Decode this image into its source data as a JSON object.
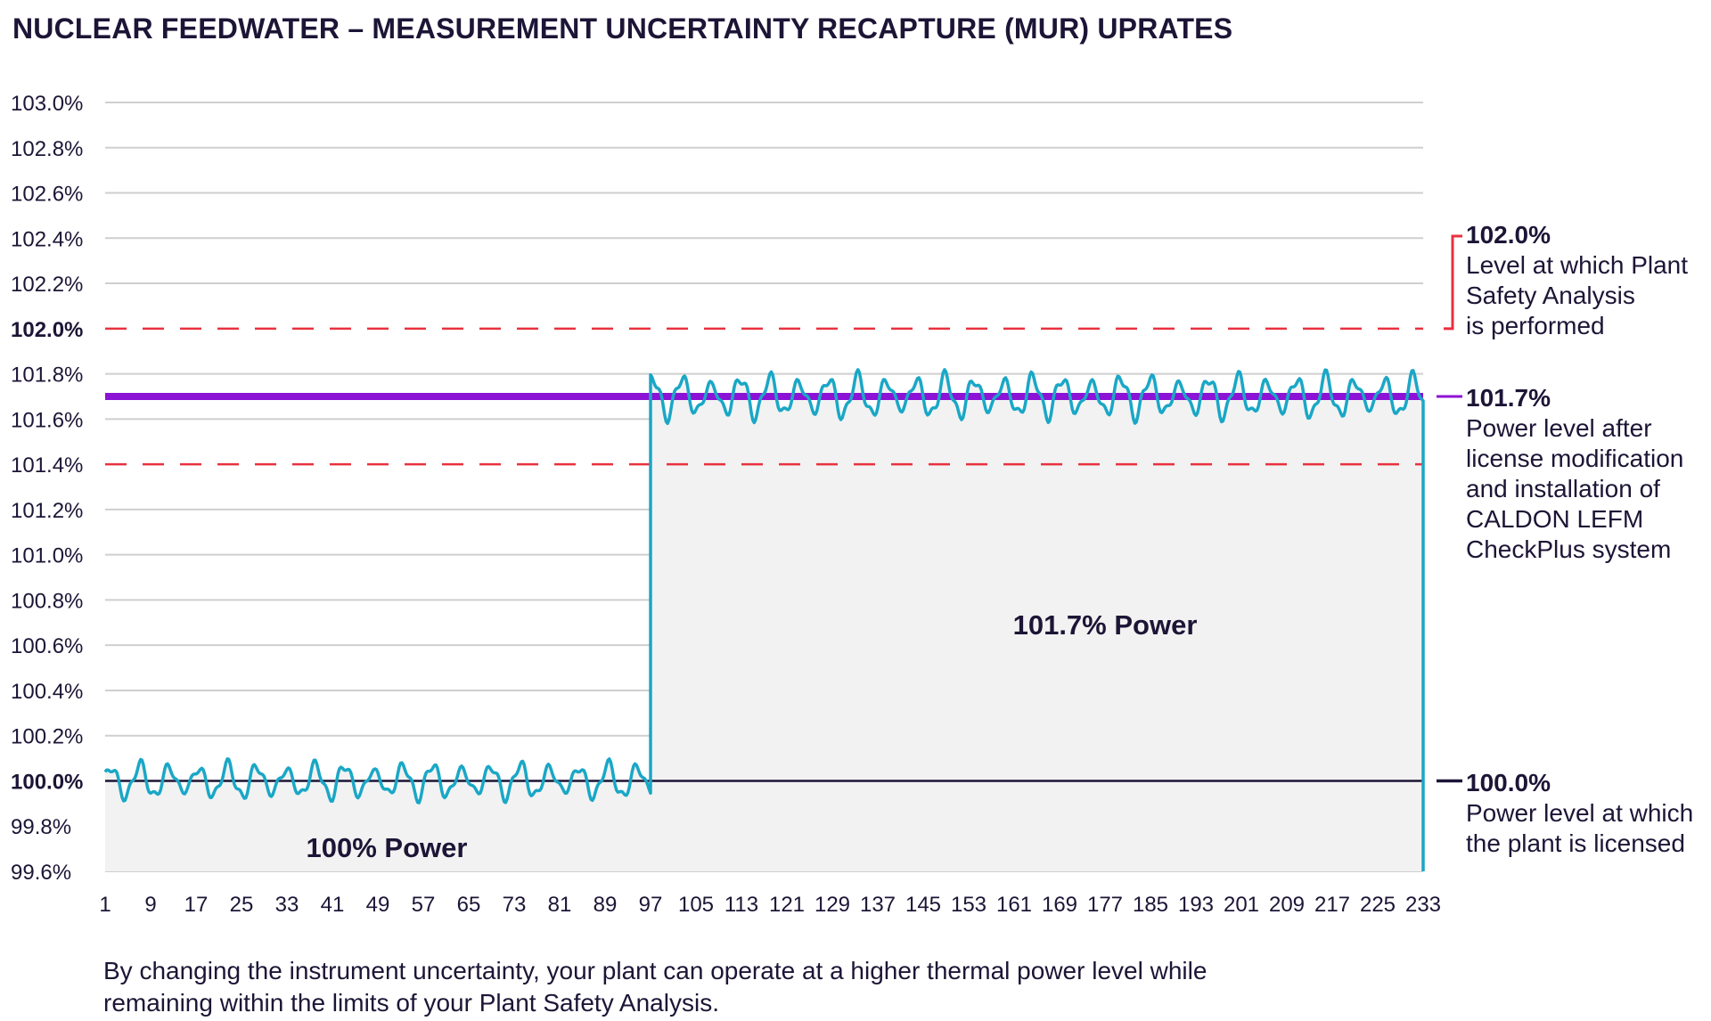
{
  "title": "NUCLEAR FEEDWATER – MEASUREMENT UNCERTAINTY RECAPTURE (MUR) UPRATES",
  "caption": "By changing the instrument uncertainty, your plant can operate at a higher thermal power level while\nremaining within the limits of your Plant Safety Analysis.",
  "colors": {
    "series": "#1aa7c6",
    "uprate_line": "#8c12d6",
    "safety_dashed": "#e8313f",
    "baseline": "#1d1536",
    "fill": "#f2f2f2",
    "grid": "#cfcfcf"
  },
  "annotations": [
    {
      "id": "safety",
      "value": "102.0%",
      "description": "Level at which Plant\nSafety Analysis\nis performed",
      "marker_color": "#e8313f"
    },
    {
      "id": "uprate",
      "value": "101.7%",
      "description": "Power level after\nlicense modification\nand installation of\nCALDON LEFM\nCheckPlus system",
      "marker_color": "#8c12d6"
    },
    {
      "id": "licensed",
      "value": "100.0%",
      "description": "Power level at which\nthe plant is licensed",
      "marker_color": "#1d1536"
    }
  ],
  "chart_data": {
    "type": "line",
    "title": "NUCLEAR FEEDWATER – MEASUREMENT UNCERTAINTY RECAPTURE (MUR) UPRATES",
    "xlabel": "",
    "ylabel": "",
    "x_range": [
      1,
      233
    ],
    "x_ticks": [
      "1",
      "9",
      "17",
      "25",
      "33",
      "41",
      "49",
      "57",
      "65",
      "73",
      "81",
      "89",
      "97",
      "105",
      "113",
      "121",
      "129",
      "137",
      "145",
      "153",
      "161",
      "169",
      "177",
      "185",
      "193",
      "201",
      "209",
      "217",
      "225",
      "233"
    ],
    "ylim": [
      99.6,
      103.0
    ],
    "y_ticks": [
      "99.6%",
      "99.8%",
      "100.0%",
      "100.2%",
      "100.4%",
      "100.6%",
      "100.8%",
      "101.0%",
      "101.2%",
      "101.4%",
      "101.6%",
      "101.8%",
      "102.0%",
      "102.2%",
      "102.4%",
      "102.6%",
      "102.8%",
      "103.0%"
    ],
    "y_ticks_bold": [
      "100.0%",
      "102.0%"
    ],
    "grid": true,
    "reference_lines": [
      {
        "y": 102.0,
        "style": "dashed",
        "color": "#e8313f"
      },
      {
        "y": 101.4,
        "style": "dashed",
        "color": "#e8313f"
      },
      {
        "y": 101.7,
        "style": "solid",
        "color": "#8c12d6"
      },
      {
        "y": 100.0,
        "style": "solid",
        "color": "#1d1536"
      }
    ],
    "regions": [
      {
        "label": "100% Power",
        "x_start": 1,
        "x_end": 97,
        "mean": 100.0,
        "amplitude": 0.1
      },
      {
        "label": "101.7% Power",
        "x_start": 97,
        "x_end": 233,
        "mean": 101.7,
        "amplitude": 0.12
      }
    ],
    "series": [
      {
        "values_note": "",
        "color": "#1aa7c6"
      }
    ]
  }
}
